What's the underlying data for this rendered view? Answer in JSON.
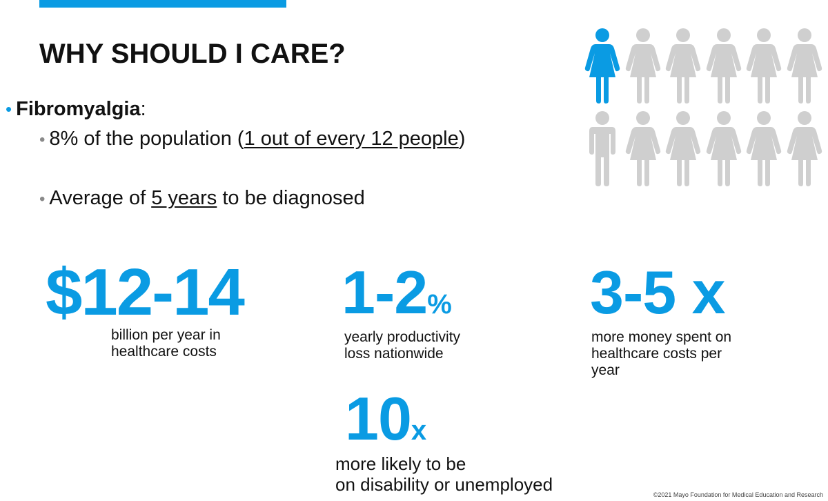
{
  "slide": {
    "title": "WHY SHOULD I CARE?",
    "topic": "Fibromyalgia",
    "topic_suffix": ":",
    "bullets": {
      "population": {
        "pre": "8% of the population (",
        "underlined": "1 out of every 12 people",
        "post": ")"
      },
      "diagnosis": {
        "pre": "Average of ",
        "underlined": "5 years",
        "post": " to be diagnosed"
      }
    }
  },
  "icon_array": {
    "total": 12,
    "highlighted": 1,
    "highlight_color": "#0a9be3",
    "other_color": "#cfcfcf",
    "icons": [
      "woman-icon",
      "woman-icon",
      "woman-icon",
      "woman-icon",
      "woman-icon",
      "woman-icon",
      "man-icon",
      "woman-icon",
      "woman-icon",
      "woman-icon",
      "woman-icon",
      "woman-icon"
    ]
  },
  "stats": [
    {
      "value": "$12-14",
      "suffix": "",
      "caption_lines": [
        "billion per year in",
        "healthcare costs"
      ]
    },
    {
      "value": "1-2",
      "suffix": "%",
      "caption_lines": [
        "yearly productivity",
        "loss nationwide"
      ]
    },
    {
      "value": "3-5 x",
      "suffix": "",
      "caption_lines": [
        "more money spent on",
        "healthcare costs per",
        "year"
      ]
    },
    {
      "value": "10",
      "suffix": "x",
      "caption_lines": [
        "more likely to be",
        "on disability or unemployed"
      ]
    }
  ],
  "footer": "©2021 Mayo Foundation for Medical Education and Research",
  "colors": {
    "accent": "#0a9be3",
    "text": "#111111",
    "icon_gray": "#cfcfcf"
  }
}
